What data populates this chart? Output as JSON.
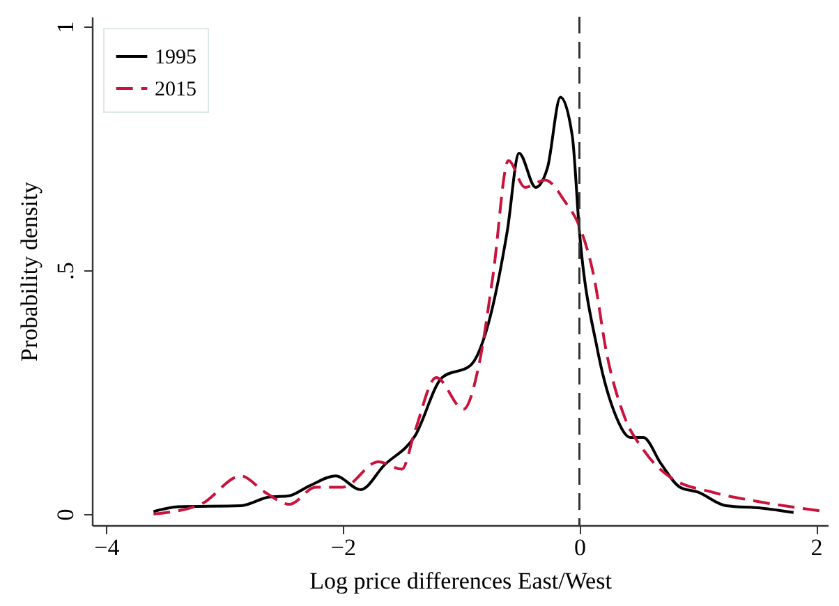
{
  "chart_data": {
    "type": "line",
    "xlabel": "Log price differences East/West",
    "ylabel": "Probability density",
    "xlim": [
      -4.12,
      2.1
    ],
    "xticks": [
      {
        "value": -4,
        "label": "−4"
      },
      {
        "value": -2,
        "label": "−2"
      },
      0,
      2
    ],
    "ylim": [
      -0.023,
      1.02
    ],
    "yticks": [
      0,
      {
        "value": 0.5,
        "label": ".5"
      },
      1
    ],
    "grid": false,
    "legend": "top left",
    "ref_lines": [
      {
        "axis": "x",
        "value": 0,
        "label": null,
        "color": "#333333",
        "line_style": "dashed"
      }
    ],
    "series": [
      {
        "name": "1995",
        "color": "#000000",
        "line_style": "solid",
        "x": [
          -3.6,
          -3.39,
          -2.86,
          -2.62,
          -2.46,
          -2.28,
          -2.06,
          -1.85,
          -1.65,
          -1.39,
          -1.16,
          -0.92,
          -0.77,
          -0.61,
          -0.51,
          -0.37,
          -0.27,
          -0.16,
          -0.06,
          0,
          0.15,
          0.31,
          0.43,
          0.54,
          0.69,
          0.85,
          1.0,
          1.24,
          1.54,
          1.81
        ],
        "values": [
          0.005,
          0.015,
          0.017,
          0.035,
          0.037,
          0.058,
          0.078,
          0.05,
          0.1,
          0.16,
          0.28,
          0.305,
          0.39,
          0.58,
          0.74,
          0.67,
          0.71,
          0.855,
          0.775,
          0.58,
          0.34,
          0.2,
          0.157,
          0.157,
          0.103,
          0.055,
          0.045,
          0.017,
          0.012,
          0.003
        ]
      },
      {
        "name": "2015",
        "color": "#c8143c",
        "line_style": "dashed",
        "x": [
          -3.6,
          -3.2,
          -2.86,
          -2.66,
          -2.45,
          -2.23,
          -2.0,
          -1.7,
          -1.5,
          -1.39,
          -1.21,
          -0.98,
          -0.85,
          -0.73,
          -0.6,
          -0.46,
          -0.29,
          -0.12,
          0,
          0.12,
          0.23,
          0.38,
          0.54,
          0.77,
          1.12,
          1.5,
          2.05
        ],
        "values": [
          0.0,
          0.02,
          0.078,
          0.045,
          0.02,
          0.055,
          0.055,
          0.107,
          0.092,
          0.17,
          0.28,
          0.215,
          0.305,
          0.49,
          0.725,
          0.67,
          0.685,
          0.64,
          0.59,
          0.49,
          0.33,
          0.2,
          0.132,
          0.075,
          0.045,
          0.026,
          0.006
        ]
      }
    ]
  }
}
